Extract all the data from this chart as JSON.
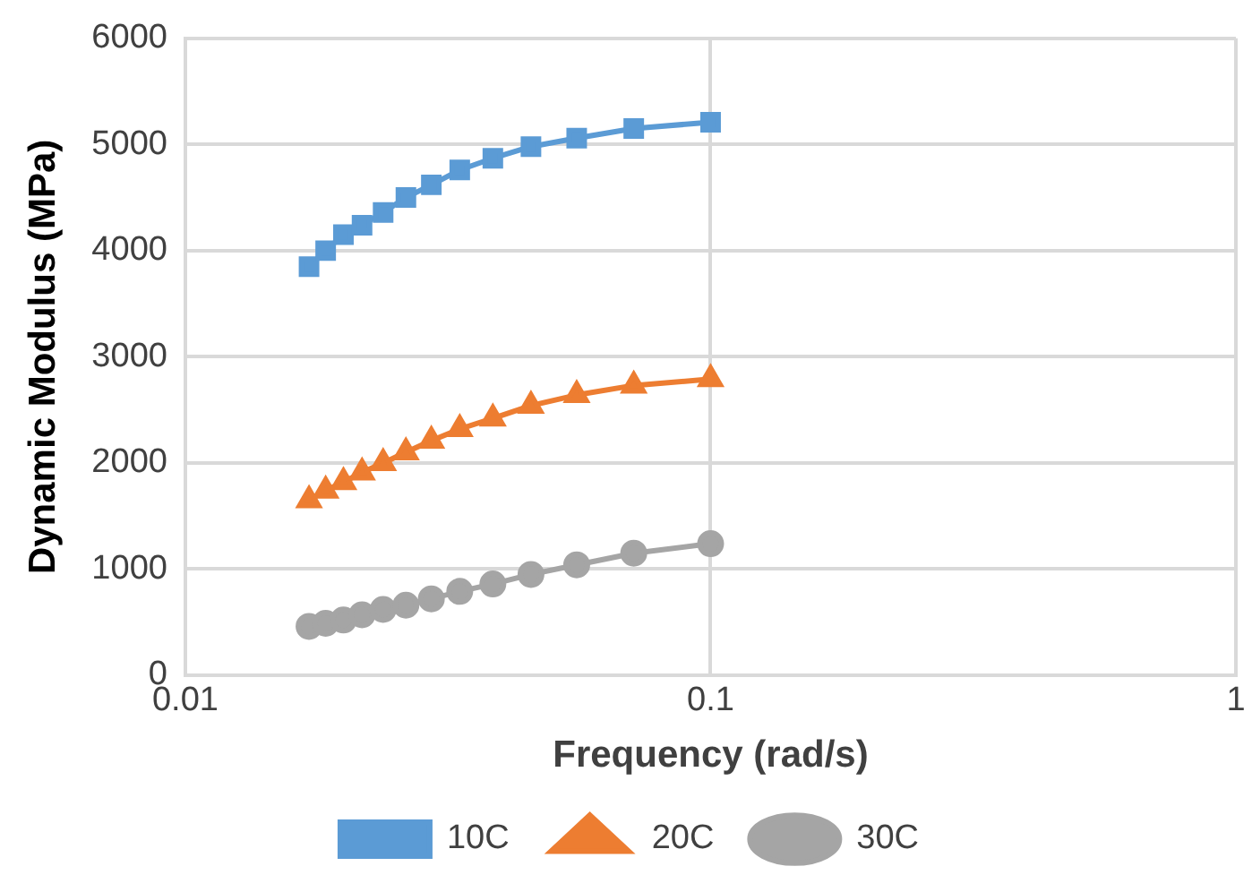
{
  "chart_data": {
    "type": "line",
    "xlabel": "Frequency (rad/s)",
    "ylabel": "Dynamic Modulus (MPa)",
    "x": [
      0.0172,
      0.0185,
      0.02,
      0.0217,
      0.0238,
      0.0263,
      0.0294,
      0.0333,
      0.0385,
      0.0455,
      0.0556,
      0.0714,
      0.1
    ],
    "series": [
      {
        "name": "10C",
        "color": "#5b9bd5",
        "marker": "square",
        "values": [
          3850,
          4000,
          4150,
          4240,
          4360,
          4500,
          4620,
          4760,
          4870,
          4980,
          5060,
          5150,
          5210
        ]
      },
      {
        "name": "20C",
        "color": "#ed7d31",
        "marker": "triangle",
        "values": [
          1650,
          1740,
          1820,
          1910,
          2000,
          2100,
          2210,
          2320,
          2420,
          2540,
          2640,
          2730,
          2790
        ]
      },
      {
        "name": "30C",
        "color": "#a5a5a5",
        "marker": "circle",
        "values": [
          460,
          490,
          520,
          570,
          620,
          660,
          720,
          790,
          860,
          950,
          1040,
          1150,
          1240
        ]
      }
    ],
    "log": "x",
    "xlim": [
      0.01,
      1
    ],
    "xticks": [
      0.01,
      0.1,
      1
    ],
    "ylim": [
      0,
      6000
    ],
    "yticks": [
      0,
      1000,
      2000,
      3000,
      4000,
      5000,
      6000
    ],
    "grid": true,
    "legend": "bottom",
    "line_style": "solid"
  }
}
